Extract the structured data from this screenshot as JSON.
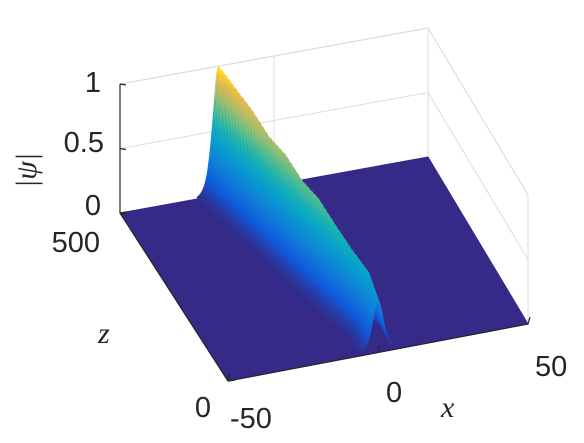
{
  "chart_data": {
    "type": "surface",
    "view": "3d",
    "xlabel": "x",
    "ylabel": "z",
    "zlabel": "|ψ|",
    "xlim": [
      -50,
      50
    ],
    "ylim": [
      0,
      500
    ],
    "zlim": [
      0,
      1
    ],
    "x_ticks": [
      "-50",
      "0",
      "50"
    ],
    "y_ticks": [
      "0",
      "500"
    ],
    "z_ticks": [
      "0",
      "0.5",
      "1"
    ],
    "grid": true,
    "box": true,
    "colormap": "parula",
    "series": [
      {
        "z": [
          0,
          50,
          100,
          150,
          200,
          250,
          300,
          350,
          400,
          450,
          500
        ],
        "peak_x": [
          0,
          0,
          -2,
          -4,
          -6,
          -8,
          -10,
          -12,
          -14,
          -16,
          -18
        ],
        "peak_amplitude": [
          0.4,
          0.5,
          0.55,
          0.62,
          0.7,
          0.72,
          0.8,
          0.82,
          0.9,
          0.95,
          1.0
        ],
        "width": 2.5
      }
    ],
    "colors": {
      "floor": "#352a87",
      "axis": "#262626",
      "grid": "#dcdcdc"
    }
  }
}
